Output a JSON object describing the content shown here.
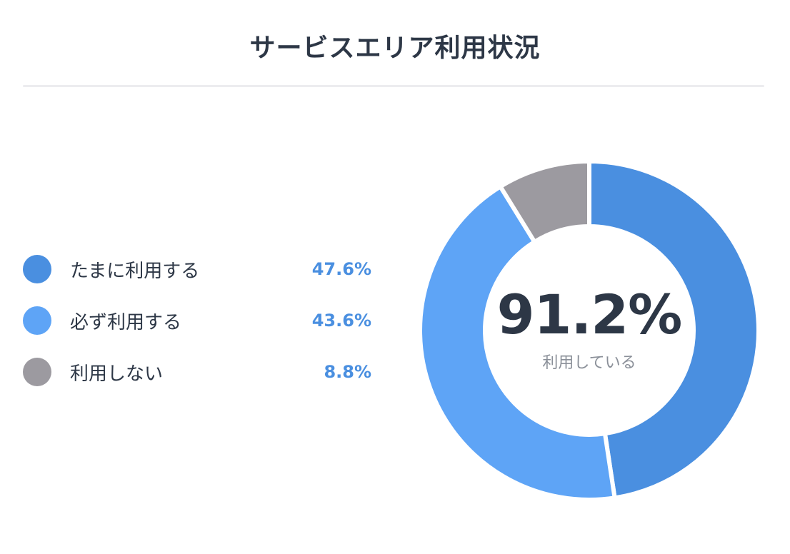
{
  "chart_data": {
    "type": "pie",
    "title": "サービスエリア利用状況",
    "categories": [
      "たまに利用する",
      "必ず利用する",
      "利用しない"
    ],
    "values": [
      47.6,
      43.6,
      8.8
    ],
    "value_labels": [
      "47.6%",
      "43.6%",
      "8.8%"
    ],
    "colors": [
      "#4a8fe0",
      "#5ea4f6",
      "#9c9aa0"
    ],
    "donut": true,
    "legend_position": "left",
    "center_value": "91.2%",
    "center_label": "利用している"
  }
}
